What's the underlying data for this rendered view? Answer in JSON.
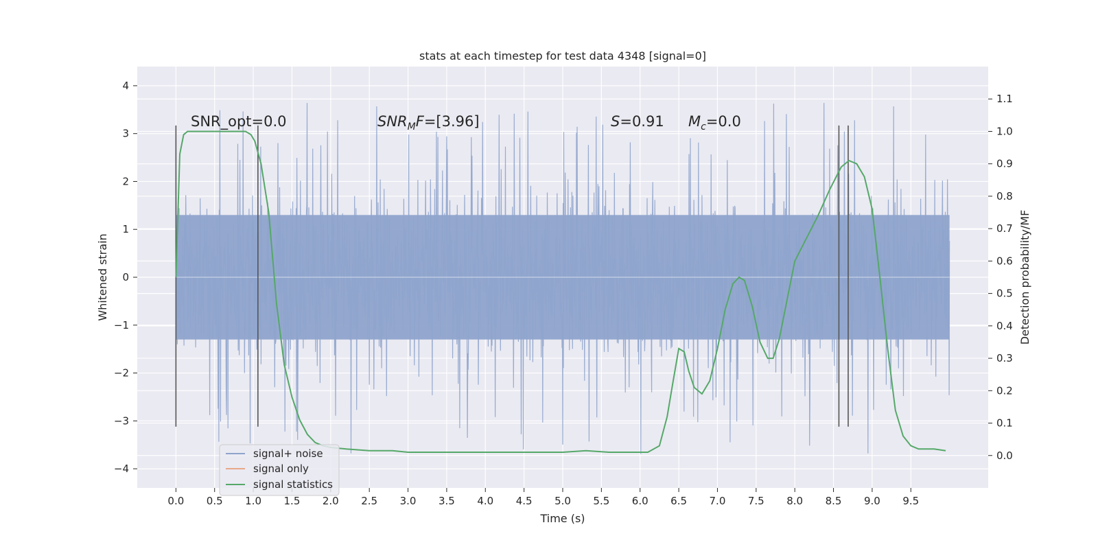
{
  "chart_data": {
    "type": "line",
    "title": "stats at each timestep for test data 4348 [signal=0]",
    "xlabel": "Time (s)",
    "ylabel": "Whitened strain",
    "ylabel_right": "Detection probability/MF",
    "xlim": [
      -0.5,
      10.5
    ],
    "ylim": [
      -4.4,
      4.4
    ],
    "ylim_right": [
      -0.1,
      1.2
    ],
    "x_ticks": [
      "0.0",
      "0.5",
      "1.0",
      "1.5",
      "2.0",
      "2.5",
      "3.0",
      "3.5",
      "4.0",
      "4.5",
      "5.0",
      "5.5",
      "6.0",
      "6.5",
      "7.0",
      "7.5",
      "8.0",
      "8.5",
      "9.0",
      "9.5"
    ],
    "y_ticks": [
      "4",
      "3",
      "2",
      "1",
      "0",
      "−1",
      "−2",
      "−3",
      "−4"
    ],
    "y_ticks_right": [
      "0.0",
      "0.1",
      "0.2",
      "0.3",
      "0.4",
      "0.5",
      "0.6",
      "0.7",
      "0.8",
      "0.9",
      "1.0",
      "1.1"
    ],
    "grid": true,
    "legend_position": "lower-left",
    "annotations": {
      "snr_opt": "SNR_opt=0.0",
      "snr_mf_label": "SNR",
      "snr_mf_sub": "M",
      "snr_mf_tail": "F",
      "snr_mf_value": "=[3.96]",
      "s_label": "S",
      "s_value": "=0.91",
      "mc_label": "M",
      "mc_sub": "c",
      "mc_value": "=0.0"
    },
    "vertical_markers": [
      0.0,
      1.06,
      8.57,
      8.69
    ],
    "series": [
      {
        "name": "signal+ noise",
        "color": "#8fa4cc",
        "kind": "noise",
        "x_range": [
          0.0,
          10.0
        ],
        "band": [
          -1.3,
          1.3
        ],
        "spike_range": [
          -4.0,
          4.05
        ]
      },
      {
        "name": "signal only",
        "color": "#e8a88a",
        "kind": "signal",
        "values": []
      },
      {
        "name": "signal statistics",
        "color": "#55a868",
        "kind": "probability",
        "x": [
          0.0,
          0.05,
          0.1,
          0.15,
          0.2,
          0.3,
          0.5,
          0.7,
          0.9,
          0.97,
          1.02,
          1.1,
          1.2,
          1.3,
          1.4,
          1.5,
          1.6,
          1.7,
          1.8,
          1.9,
          2.0,
          2.2,
          2.5,
          2.8,
          3.0,
          3.2,
          3.5,
          4.0,
          4.5,
          5.0,
          5.3,
          5.6,
          5.9,
          6.1,
          6.25,
          6.35,
          6.42,
          6.5,
          6.57,
          6.63,
          6.7,
          6.8,
          6.9,
          7.0,
          7.1,
          7.2,
          7.28,
          7.35,
          7.45,
          7.55,
          7.65,
          7.72,
          7.8,
          7.9,
          8.0,
          8.15,
          8.3,
          8.45,
          8.6,
          8.7,
          8.8,
          8.9,
          9.0,
          9.1,
          9.2,
          9.3,
          9.4,
          9.5,
          9.6,
          9.7,
          9.8,
          9.95
        ],
        "values": [
          0.55,
          0.93,
          0.99,
          1.0,
          1.0,
          1.0,
          1.0,
          1.0,
          1.0,
          0.99,
          0.97,
          0.9,
          0.75,
          0.47,
          0.28,
          0.18,
          0.11,
          0.065,
          0.04,
          0.03,
          0.025,
          0.02,
          0.015,
          0.015,
          0.01,
          0.01,
          0.01,
          0.01,
          0.01,
          0.01,
          0.015,
          0.01,
          0.01,
          0.01,
          0.03,
          0.12,
          0.22,
          0.33,
          0.32,
          0.26,
          0.21,
          0.19,
          0.23,
          0.33,
          0.45,
          0.53,
          0.55,
          0.54,
          0.46,
          0.35,
          0.3,
          0.3,
          0.36,
          0.48,
          0.6,
          0.67,
          0.74,
          0.82,
          0.89,
          0.91,
          0.9,
          0.86,
          0.76,
          0.55,
          0.33,
          0.14,
          0.06,
          0.03,
          0.02,
          0.02,
          0.02,
          0.015
        ]
      }
    ]
  }
}
